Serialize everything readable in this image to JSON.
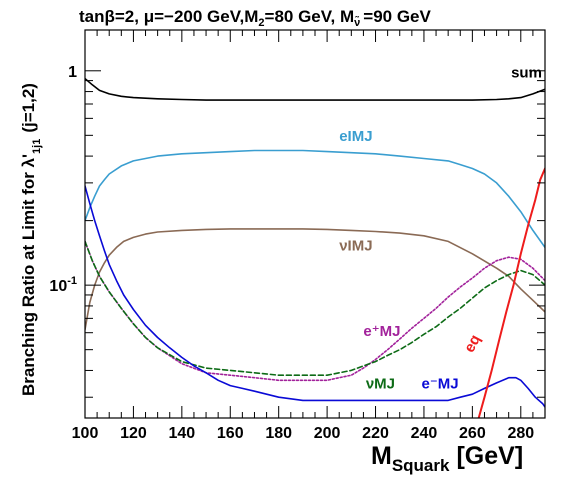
{
  "chart_data": {
    "type": "line",
    "title": "tanβ=2,  μ=−200 GeV,M₂=80 GeV, M~ =90 GeV",
    "title_parts": {
      "prefix": "tanβ=2,  μ=−200 GeV,M",
      "sub1": "2",
      "middle": "=80 GeV, M",
      "sub2": "ν̃",
      "suffix": "=90 GeV"
    },
    "xlabel": "M",
    "xlabel_sub": "Squark",
    "xlabel_unit": "[GeV]",
    "ylabel": "Branching Ratio at Limit for λ'",
    "ylabel_sub": "1j1",
    "ylabel_suffix": "(j=1,2)",
    "xlim": [
      100,
      290
    ],
    "ylim": [
      0.024,
      1.55
    ],
    "yscale": "log",
    "xticks": [
      100,
      120,
      140,
      160,
      180,
      200,
      220,
      240,
      260,
      280
    ],
    "xtick_labels": [
      "100",
      "120",
      "140",
      "160",
      "180",
      "200",
      "220",
      "240",
      "260",
      "280"
    ],
    "ytick_labels": [
      {
        "value": 1,
        "label": "1"
      },
      {
        "value": 0.1,
        "label": "10",
        "exponent": "-1"
      }
    ],
    "grid": false,
    "series": [
      {
        "name": "sum",
        "color": "#000000",
        "dash": "solid",
        "x": [
          100,
          103,
          106,
          110,
          115,
          120,
          130,
          140,
          150,
          160,
          170,
          180,
          190,
          200,
          210,
          220,
          230,
          240,
          250,
          260,
          270,
          275,
          280,
          285,
          290
        ],
        "y": [
          0.92,
          0.86,
          0.81,
          0.78,
          0.76,
          0.75,
          0.74,
          0.735,
          0.73,
          0.73,
          0.73,
          0.73,
          0.73,
          0.73,
          0.73,
          0.73,
          0.73,
          0.73,
          0.73,
          0.73,
          0.735,
          0.74,
          0.75,
          0.78,
          0.82
        ]
      },
      {
        "name": "eIMJ",
        "color": "#3a9ed0",
        "dash": "solid",
        "x": [
          100,
          102,
          104,
          106,
          108,
          110,
          115,
          120,
          125,
          130,
          140,
          150,
          160,
          170,
          180,
          190,
          200,
          210,
          220,
          230,
          240,
          250,
          255,
          260,
          265,
          270,
          275,
          280,
          285,
          290
        ],
        "y": [
          0.2,
          0.23,
          0.26,
          0.29,
          0.31,
          0.33,
          0.36,
          0.38,
          0.39,
          0.4,
          0.41,
          0.415,
          0.42,
          0.425,
          0.425,
          0.425,
          0.42,
          0.415,
          0.41,
          0.4,
          0.39,
          0.38,
          0.365,
          0.35,
          0.33,
          0.3,
          0.26,
          0.22,
          0.18,
          0.15
        ]
      },
      {
        "name": "νIMJ",
        "color": "#8a6a55",
        "dash": "solid",
        "x": [
          100,
          102,
          104,
          106,
          108,
          110,
          113,
          116,
          120,
          125,
          130,
          140,
          150,
          160,
          170,
          180,
          190,
          200,
          210,
          220,
          230,
          240,
          250,
          260,
          270,
          275,
          280,
          285,
          290
        ],
        "y": [
          0.062,
          0.083,
          0.1,
          0.115,
          0.127,
          0.138,
          0.15,
          0.16,
          0.167,
          0.173,
          0.177,
          0.18,
          0.182,
          0.183,
          0.183,
          0.183,
          0.183,
          0.182,
          0.18,
          0.178,
          0.175,
          0.17,
          0.16,
          0.14,
          0.12,
          0.11,
          0.096,
          0.085,
          0.075
        ]
      },
      {
        "name": "e⁺MJ",
        "color": "#a2229b",
        "dash": "dotted",
        "x": [
          100,
          103,
          106,
          110,
          115,
          120,
          125,
          130,
          140,
          150,
          160,
          170,
          180,
          190,
          200,
          205,
          210,
          215,
          220,
          225,
          230,
          235,
          240,
          245,
          250,
          255,
          260,
          265,
          270,
          275,
          280,
          285,
          290
        ],
        "y": [
          0.16,
          0.13,
          0.11,
          0.093,
          0.078,
          0.066,
          0.057,
          0.051,
          0.043,
          0.039,
          0.038,
          0.037,
          0.036,
          0.036,
          0.036,
          0.037,
          0.038,
          0.041,
          0.045,
          0.05,
          0.056,
          0.063,
          0.07,
          0.078,
          0.088,
          0.098,
          0.108,
          0.12,
          0.13,
          0.135,
          0.132,
          0.12,
          0.105
        ]
      },
      {
        "name": "νMJ",
        "color": "#0d6b16",
        "dash": "dashed",
        "x": [
          100,
          103,
          106,
          110,
          115,
          120,
          125,
          130,
          140,
          150,
          160,
          170,
          180,
          190,
          200,
          205,
          210,
          215,
          220,
          225,
          230,
          235,
          240,
          245,
          250,
          255,
          260,
          265,
          270,
          275,
          280,
          285,
          290
        ],
        "y": [
          0.16,
          0.13,
          0.11,
          0.093,
          0.078,
          0.066,
          0.057,
          0.051,
          0.044,
          0.041,
          0.04,
          0.039,
          0.038,
          0.038,
          0.038,
          0.039,
          0.04,
          0.042,
          0.044,
          0.047,
          0.05,
          0.054,
          0.059,
          0.064,
          0.071,
          0.078,
          0.087,
          0.097,
          0.105,
          0.112,
          0.117,
          0.112,
          0.1
        ]
      },
      {
        "name": "e⁻MJ",
        "color": "#0a0ad6",
        "dash": "solid",
        "x": [
          100,
          102,
          104,
          106,
          108,
          110,
          113,
          116,
          120,
          125,
          130,
          135,
          140,
          145,
          150,
          155,
          160,
          165,
          170,
          175,
          180,
          190,
          200,
          210,
          220,
          230,
          240,
          250,
          255,
          260,
          265,
          270,
          275,
          278,
          280,
          283,
          286,
          289,
          290
        ],
        "y": [
          0.29,
          0.24,
          0.2,
          0.17,
          0.145,
          0.125,
          0.105,
          0.09,
          0.077,
          0.065,
          0.057,
          0.051,
          0.046,
          0.042,
          0.039,
          0.036,
          0.034,
          0.033,
          0.032,
          0.031,
          0.03,
          0.029,
          0.029,
          0.029,
          0.029,
          0.029,
          0.029,
          0.029,
          0.03,
          0.031,
          0.033,
          0.035,
          0.037,
          0.037,
          0.036,
          0.033,
          0.03,
          0.028,
          0.027
        ]
      },
      {
        "name": "eq",
        "color": "#ee1c1c",
        "dash": "solid",
        "x": [
          262.6,
          265,
          268,
          271,
          274,
          277,
          280,
          283,
          286,
          288,
          290
        ],
        "y": [
          0.024,
          0.03,
          0.04,
          0.055,
          0.075,
          0.1,
          0.14,
          0.19,
          0.25,
          0.31,
          0.35
        ]
      }
    ],
    "annotations": [
      {
        "text": "sum",
        "x": 276,
        "y": 0.93,
        "color": "#000000"
      },
      {
        "text": "eIMJ",
        "x": 205,
        "y": 0.47,
        "color": "#3a9ed0"
      },
      {
        "text": "νIMJ",
        "x": 205,
        "y": 0.145,
        "color": "#8a6a55"
      },
      {
        "text": "e⁺MJ",
        "x": 215,
        "y": 0.058,
        "color": "#a2229b"
      },
      {
        "text": "νMJ",
        "x": 216,
        "y": 0.033,
        "color": "#0d6b16"
      },
      {
        "text": "e⁻MJ",
        "x": 239,
        "y": 0.033,
        "color": "#0a0ad6"
      },
      {
        "text": "eq",
        "x": 260,
        "y": 0.048,
        "color": "#ee1c1c",
        "rotate": -62
      }
    ]
  }
}
